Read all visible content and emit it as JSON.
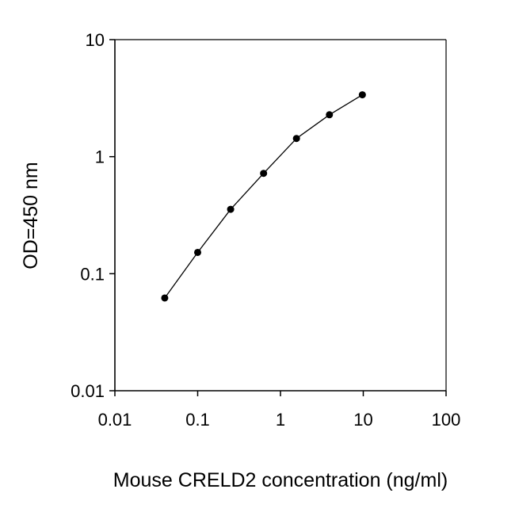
{
  "chart_data": {
    "type": "line",
    "title": "",
    "xlabel": "Mouse CRELD2 concentration (ng/ml)",
    "ylabel": "OD=450 nm",
    "x_scale": "log",
    "y_scale": "log",
    "xlim": [
      0.01,
      100
    ],
    "ylim": [
      0.01,
      10
    ],
    "x_ticks": [
      "0.01",
      "0.1",
      "1",
      "10",
      "100"
    ],
    "y_ticks": [
      "0.01",
      "0.1",
      "1",
      "10"
    ],
    "grid": false,
    "legend": "none",
    "series": [
      {
        "x": [
          0.04,
          0.1,
          0.25,
          0.625,
          1.56,
          3.9,
          9.75
        ],
        "y": [
          0.062,
          0.152,
          0.355,
          0.72,
          1.43,
          2.28,
          3.38
        ]
      }
    ],
    "colors": {
      "line": "#000000",
      "marker": "#000000",
      "axis": "#000000"
    }
  }
}
